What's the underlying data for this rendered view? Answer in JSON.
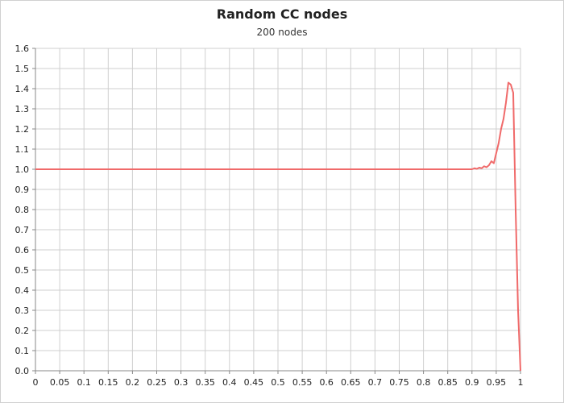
{
  "chart_data": {
    "type": "line",
    "title": "Random CC nodes",
    "subtitle": "200 nodes",
    "xlabel": "",
    "ylabel": "",
    "xlim": [
      0,
      1
    ],
    "ylim": [
      0,
      1.6
    ],
    "grid": true,
    "x_ticks": [
      "0",
      "0.05",
      "0.1",
      "0.15",
      "0.2",
      "0.25",
      "0.3",
      "0.35",
      "0.4",
      "0.45",
      "0.5",
      "0.55",
      "0.6",
      "0.65",
      "0.7",
      "0.75",
      "0.8",
      "0.85",
      "0.9",
      "0.95",
      "1"
    ],
    "y_ticks": [
      "0.0",
      "0.1",
      "0.2",
      "0.3",
      "0.4",
      "0.5",
      "0.6",
      "0.7",
      "0.8",
      "0.9",
      "1.0",
      "1.1",
      "1.2",
      "1.3",
      "1.4",
      "1.5",
      "1.6"
    ],
    "series": [
      {
        "color": "#f06a6a",
        "x": [
          0,
          0.85,
          0.86,
          0.87,
          0.88,
          0.89,
          0.9,
          0.905,
          0.91,
          0.915,
          0.92,
          0.925,
          0.93,
          0.935,
          0.94,
          0.945,
          0.95,
          0.955,
          0.96,
          0.965,
          0.97,
          0.975,
          0.98,
          0.985,
          0.99,
          0.995,
          1.0
        ],
        "y": [
          1.0,
          1.0,
          1.0,
          1.0,
          1.0,
          1.0,
          1.0,
          1.005,
          1.002,
          1.008,
          1.005,
          1.015,
          1.01,
          1.02,
          1.04,
          1.03,
          1.08,
          1.13,
          1.2,
          1.25,
          1.33,
          1.43,
          1.42,
          1.38,
          0.8,
          0.3,
          0.0
        ]
      }
    ]
  }
}
